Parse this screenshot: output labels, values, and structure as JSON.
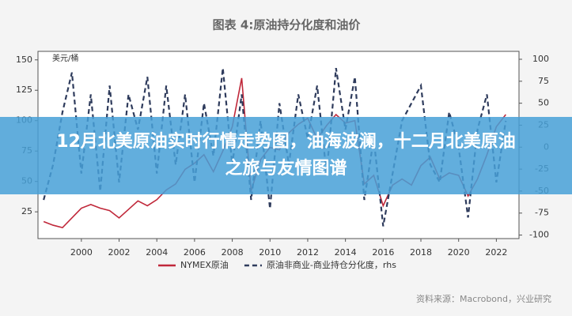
{
  "banner": {
    "text": "12月北美原油实时行情走势图，油海波澜，十二月北美原油之旅与友情图谱"
  },
  "chart_data": {
    "type": "line",
    "title": "图表 4:原油持分化度和油价",
    "y_label": "美元/桶",
    "source": "资料来源：Macrobond，兴业研究",
    "x": [
      1998,
      1998.5,
      1999,
      1999.5,
      2000,
      2000.5,
      2001,
      2001.5,
      2002,
      2002.5,
      2003,
      2003.5,
      2004,
      2004.5,
      2005,
      2005.5,
      2006,
      2006.5,
      2007,
      2007.5,
      2008,
      2008.5,
      2009,
      2009.5,
      2010,
      2010.5,
      2011,
      2011.5,
      2012,
      2012.5,
      2013,
      2013.5,
      2014,
      2014.5,
      2015,
      2015.5,
      2016,
      2016.5,
      2017,
      2017.5,
      2018,
      2018.5,
      2019,
      2019.5,
      2020,
      2020.5,
      2021,
      2021.5,
      2022,
      2022.5
    ],
    "xlim": [
      1997.7,
      2023.2
    ],
    "xticks": [
      2000,
      2002,
      2004,
      2006,
      2008,
      2010,
      2012,
      2014,
      2016,
      2018,
      2020,
      2022
    ],
    "ylim": [
      3,
      157
    ],
    "yticks": [
      25,
      50,
      75,
      100,
      125,
      150
    ],
    "y2lim": [
      -104,
      109
    ],
    "y2ticks": [
      -100,
      -75,
      -50,
      -25,
      0,
      25,
      50,
      75,
      100
    ],
    "series": [
      {
        "name": "NYMEX原油",
        "color": "#c0283a",
        "dash": false,
        "values": [
          17,
          14,
          12,
          20,
          28,
          31,
          28,
          26,
          20,
          27,
          34,
          30,
          35,
          43,
          48,
          60,
          65,
          72,
          58,
          75,
          95,
          135,
          42,
          68,
          78,
          76,
          90,
          97,
          102,
          85,
          96,
          105,
          98,
          100,
          48,
          55,
          30,
          47,
          52,
          47,
          63,
          70,
          52,
          57,
          55,
          38,
          52,
          72,
          95,
          105
        ]
      },
      {
        "name": "原油非商业-商业持仓分化度，rhs",
        "color": "#2e3b5c",
        "dash": true,
        "axis": "y2",
        "values": [
          -60,
          -20,
          40,
          85,
          -30,
          60,
          -50,
          70,
          -40,
          60,
          20,
          80,
          -30,
          70,
          -20,
          60,
          -40,
          50,
          -10,
          90,
          -20,
          60,
          -60,
          30,
          -70,
          50,
          -20,
          60,
          10,
          70,
          -30,
          90,
          20,
          80,
          -60,
          10,
          -90,
          -30,
          30,
          50,
          70,
          -20,
          -40,
          40,
          0,
          -80,
          20,
          60,
          -40,
          30
        ]
      }
    ]
  }
}
